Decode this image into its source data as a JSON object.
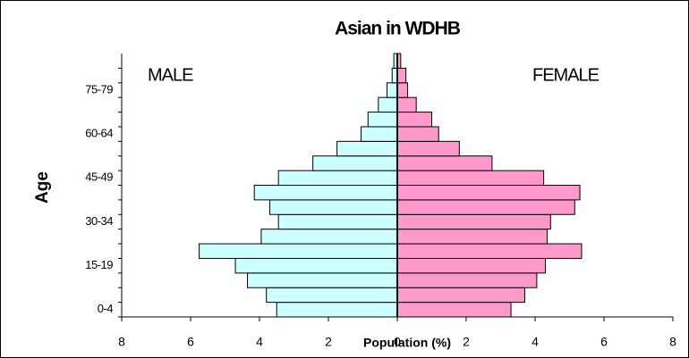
{
  "chart_data": {
    "type": "pyramid",
    "title": "Asian in WDHB",
    "x_label": "Population (%)",
    "y_label": "Age",
    "left_label": "MALE",
    "right_label": "FEMALE",
    "categories": [
      "0-4",
      null,
      null,
      "15-19",
      null,
      null,
      "30-34",
      null,
      null,
      "45-49",
      null,
      null,
      "60-64",
      null,
      null,
      "75-79",
      null,
      null
    ],
    "series": [
      {
        "name": "MALE",
        "color": "#ccffff",
        "side": "left",
        "values": [
          3.5,
          3.8,
          4.35,
          4.7,
          5.75,
          3.95,
          3.45,
          3.7,
          4.15,
          3.45,
          2.45,
          1.75,
          1.05,
          0.85,
          0.55,
          0.3,
          0.15,
          0.1
        ]
      },
      {
        "name": "FEMALE",
        "color": "#ff99cc",
        "side": "right",
        "values": [
          3.3,
          3.7,
          4.05,
          4.3,
          5.35,
          4.35,
          4.45,
          5.15,
          5.3,
          4.25,
          2.75,
          1.8,
          1.2,
          1.0,
          0.55,
          0.3,
          0.25,
          0.1
        ]
      }
    ],
    "xlim": [
      -8,
      8
    ],
    "xticks": [
      {
        "value": -8,
        "label": "8"
      },
      {
        "value": -6,
        "label": "6"
      },
      {
        "value": -4,
        "label": "4"
      },
      {
        "value": -2,
        "label": "2"
      },
      0,
      2,
      4,
      6,
      8
    ]
  }
}
